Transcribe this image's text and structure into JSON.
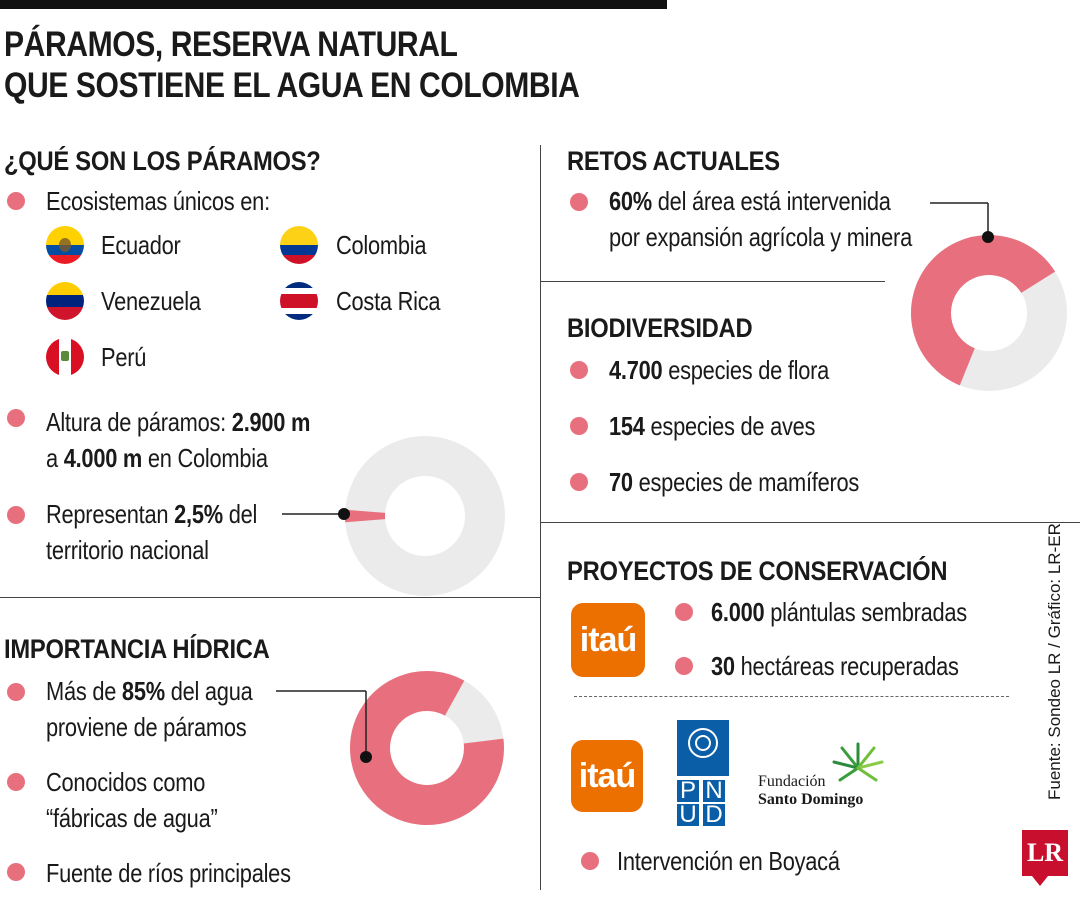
{
  "title": {
    "line1": "PÁRAMOS, RESERVA NATURAL",
    "line2": "QUE SOSTIENE EL AGUA EN COLOMBIA"
  },
  "que_son": {
    "heading": "¿QUÉ SON LOS PÁRAMOS?",
    "intro": "Ecosistemas únicos en:",
    "countries": [
      "Ecuador",
      "Colombia",
      "Venezuela",
      "Costa Rica",
      "Perú"
    ],
    "altura": {
      "pre": "Altura de páramos: ",
      "v1": "2.900 m",
      "mid": "a ",
      "v2": "4.000 m",
      "post": " en Colombia"
    },
    "representan": {
      "pre": "Representan ",
      "value": "2,5%",
      "post": " del",
      "line2": "territorio nacional",
      "fraction": 0.025
    }
  },
  "importancia": {
    "heading": "IMPORTANCIA HÍDRICA",
    "item1": {
      "pre": "Más de ",
      "value": "85%",
      "post": " del agua",
      "line2": "proviene de páramos",
      "fraction": 0.85
    },
    "item2": {
      "line1": "Conocidos como",
      "line2": "“fábricas de agua”"
    },
    "item3": "Fuente de ríos principales"
  },
  "retos": {
    "heading": "RETOS ACTUALES",
    "value": "60%",
    "post": " del área está intervenida",
    "line2": "por expansión agrícola y minera",
    "fraction": 0.6
  },
  "biodiversidad": {
    "heading": "BIODIVERSIDAD",
    "items": [
      {
        "value": "4.700",
        "text": " especies de flora"
      },
      {
        "value": "154",
        "text": " especies de aves"
      },
      {
        "value": "70",
        "text": " especies de mamíferos"
      }
    ]
  },
  "proyectos": {
    "heading": "PROYECTOS DE CONSERVACIÓN",
    "logo_itau": "itaú",
    "items": [
      {
        "value": "6.000",
        "text": " plántulas sembradas"
      },
      {
        "value": "30",
        "text": " hectáreas recuperadas"
      }
    ],
    "pnud": [
      "P",
      "N",
      "U",
      "D"
    ],
    "fsd": {
      "line1": "Fundación",
      "line2": "Santo Domingo"
    },
    "intervencion": "Intervención en Boyacá"
  },
  "source": "Fuente: Sondeo LR / Gráfico: LR-ER",
  "logo_lr": "LR",
  "colors": {
    "accent": "#e8707e",
    "grey": "#ebebeb",
    "itau": "#ec7000",
    "pnud": "#0a5ea8"
  }
}
